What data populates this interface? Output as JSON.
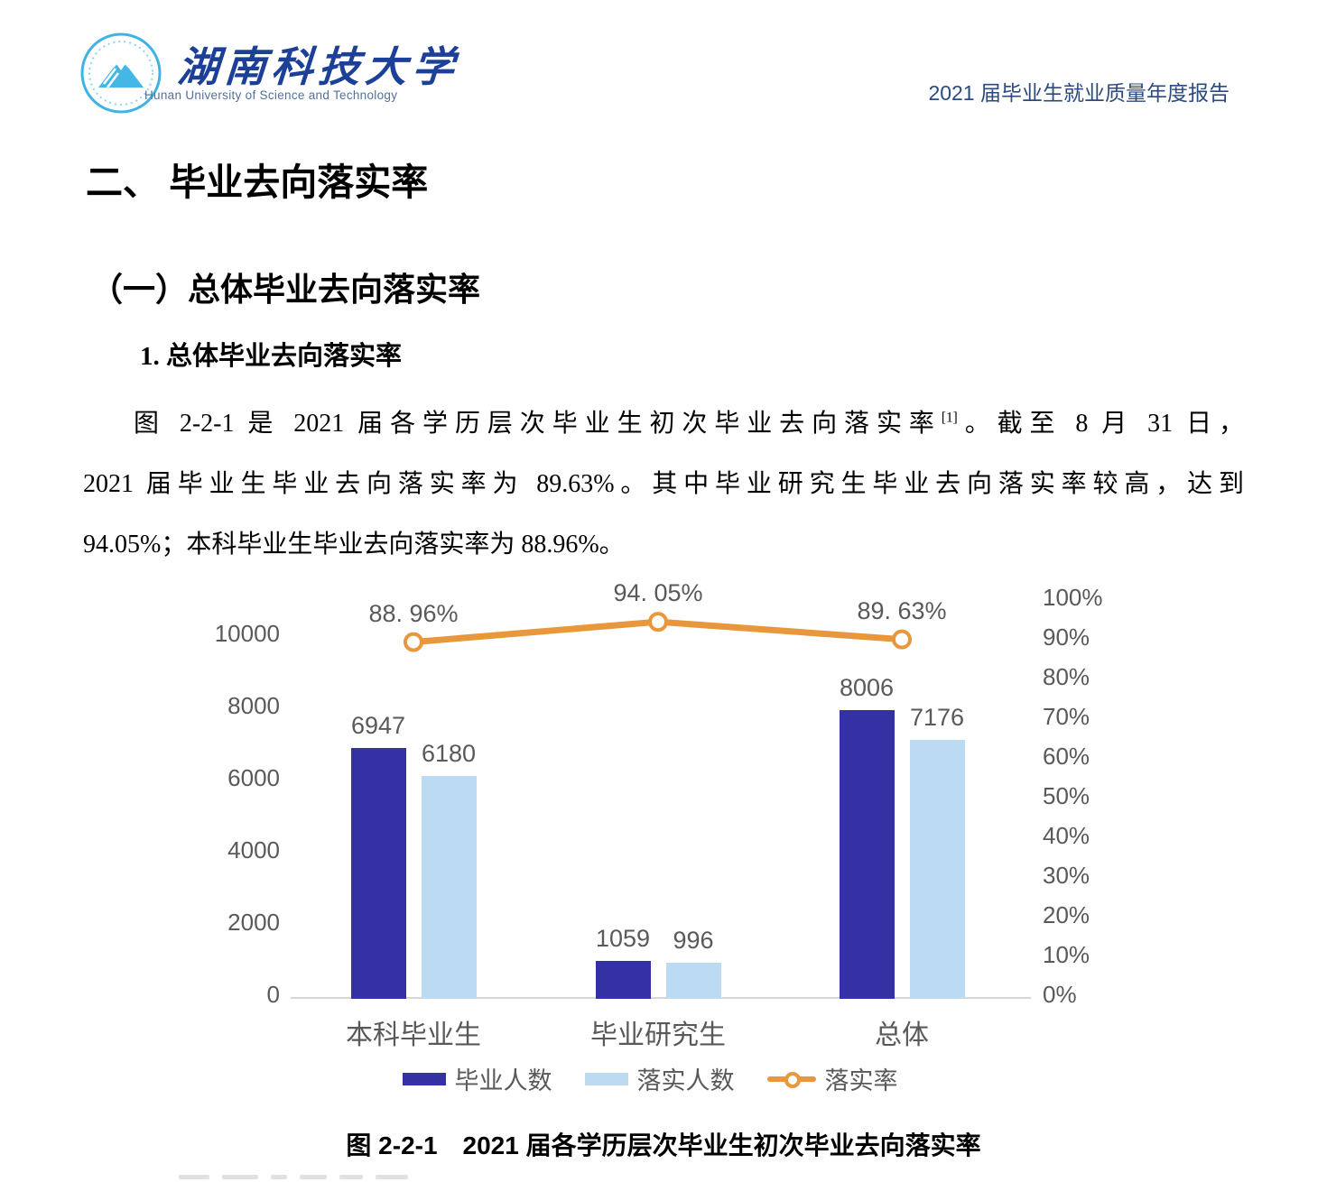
{
  "page": {
    "header": {
      "logo": {
        "cn_name": "湖南科技大学",
        "en_name": "Hunan University of Science and Technology",
        "emblem_color": "#3fb3e3"
      },
      "report_title": "2021 届毕业生就业质量年度报告"
    },
    "headings": {
      "h1": "二、 毕业去向落实率",
      "h2": "（一）总体毕业去向落实率",
      "h3": "1. 总体毕业去向落实率"
    },
    "paragraph": {
      "line1_pre": "图 2-2-1 是 2021 届各学历层次毕业生初次毕业去向落实率",
      "line1_sup": "[1]",
      "line1_post": "。截至 8 月 31 日，",
      "line2": "2021 届毕业生毕业去向落实率为 89.63%。其中毕业研究生毕业去向落实率较高，达到",
      "line3": "94.05%；本科毕业生毕业去向落实率为 88.96%。"
    },
    "caption": "图 2-2-1　2021 届各学历层次毕业生初次毕业去向落实率"
  },
  "chart_data": {
    "type": "bar",
    "subtype": "grouped-bars-with-line",
    "categories": [
      "本科毕业生",
      "毕业研究生",
      "总体"
    ],
    "series": [
      {
        "name": "毕业人数",
        "kind": "bar",
        "color": "#3431a5",
        "values": [
          6947,
          1059,
          8006
        ],
        "axis": "left"
      },
      {
        "name": "落实人数",
        "kind": "bar",
        "color": "#bddaf3",
        "values": [
          6180,
          996,
          7176
        ],
        "axis": "left"
      },
      {
        "name": "落实率",
        "kind": "line",
        "color": "#e8973d",
        "values": [
          88.96,
          94.05,
          89.63
        ],
        "point_labels": [
          "88. 96%",
          "94. 05%",
          "89. 63%"
        ],
        "axis": "right"
      }
    ],
    "left_axis": {
      "min": 0,
      "max": 10000,
      "tick_labels": [
        "0",
        "2000",
        "4000",
        "6000",
        "8000",
        "10000"
      ]
    },
    "right_axis": {
      "min": 0,
      "max": 100,
      "tick_labels": [
        "0%",
        "10%",
        "20%",
        "30%",
        "40%",
        "50%",
        "60%",
        "70%",
        "80%",
        "90%",
        "100%"
      ]
    },
    "grid": false,
    "legend_position": "bottom",
    "text_color": "#595959",
    "axis_line_color": "#d6d6d6"
  }
}
